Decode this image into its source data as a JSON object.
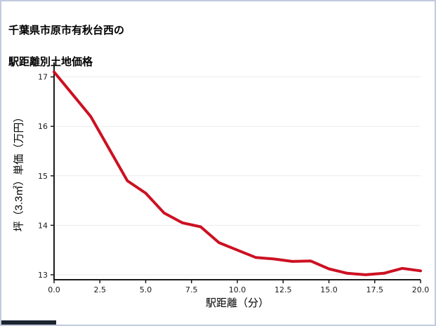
{
  "title": {
    "line1": "千葉県市原市有秋台西の",
    "line2": "駅距離別土地価格"
  },
  "chart_data": {
    "type": "line",
    "title": "千葉県市原市有秋台西の駅距離別土地価格",
    "xlabel": "駅距離（分）",
    "ylabel": "坪（3.3㎡）単価（万円）",
    "x": [
      0,
      1,
      2,
      3,
      4,
      5,
      6,
      7,
      8,
      9,
      10,
      11,
      12,
      13,
      14,
      15,
      16,
      17,
      18,
      19,
      20
    ],
    "y": [
      17.1,
      16.65,
      16.2,
      15.55,
      14.9,
      14.65,
      14.25,
      14.05,
      13.97,
      13.65,
      13.5,
      13.35,
      13.32,
      13.27,
      13.28,
      13.12,
      13.03,
      13.0,
      13.03,
      13.13,
      13.08
    ],
    "xlim": [
      0,
      20
    ],
    "ylim": [
      12.9,
      17.25
    ],
    "xtick_values": [
      0,
      2.5,
      5,
      7.5,
      10,
      12.5,
      15,
      17.5,
      20
    ],
    "xtick_labels": [
      "0.0",
      "2.5",
      "5.0",
      "7.5",
      "10.0",
      "12.5",
      "15.0",
      "17.5",
      "20.0"
    ],
    "ytick_values": [
      13,
      14,
      15,
      16,
      17
    ],
    "ytick_labels": [
      "13",
      "14",
      "15",
      "16",
      "17"
    ],
    "grid": "horizontal",
    "legend": "none",
    "colors": {
      "line": "#cc1122",
      "axis": "#1a1a1a",
      "grid": "#ebebeb",
      "tick_text": "#1a1a1a"
    }
  },
  "decor": {
    "border_color": "#c2cade",
    "bottom_bar_color": "#1b2430"
  }
}
